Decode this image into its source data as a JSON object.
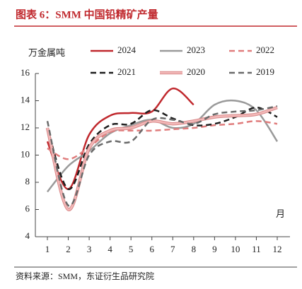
{
  "title": "图表 6：SMM 中国铅精矿产量",
  "source": "资料来源：SMM，东证衍生品研究院",
  "chart_data": {
    "type": "line",
    "y_label": "万金属吨",
    "x_label": "月",
    "categories": [
      1,
      2,
      3,
      4,
      5,
      6,
      7,
      8,
      9,
      10,
      11,
      12
    ],
    "ylim": [
      4,
      16
    ],
    "yticks": [
      4,
      6,
      8,
      10,
      12,
      14,
      16
    ],
    "series": [
      {
        "name": "2024",
        "color": "#c0282d",
        "style": "solid",
        "values": [
          11.0,
          7.5,
          11.5,
          12.9,
          13.1,
          13.2,
          14.9,
          13.7,
          null,
          null,
          null,
          null
        ]
      },
      {
        "name": "2023",
        "color": "#9a9a9a",
        "style": "solid",
        "values": [
          7.3,
          9.2,
          10.3,
          11.6,
          12.2,
          12.6,
          12.0,
          12.3,
          13.7,
          14.0,
          13.3,
          11.0
        ]
      },
      {
        "name": "2022",
        "color": "#e07c7c",
        "style": "dashed",
        "values": [
          10.5,
          9.7,
          10.6,
          11.7,
          11.8,
          11.8,
          11.9,
          12.0,
          12.2,
          12.3,
          12.5,
          12.3
        ]
      },
      {
        "name": "2021",
        "color": "#1e1e1e",
        "style": "dashed",
        "values": [
          12.0,
          7.5,
          10.8,
          12.2,
          12.3,
          13.3,
          12.7,
          12.2,
          12.3,
          12.8,
          13.5,
          12.8
        ]
      },
      {
        "name": "2020",
        "color": "#f2b8b8",
        "style": "double",
        "values": [
          12.0,
          6.0,
          10.5,
          11.8,
          12.0,
          12.5,
          12.3,
          12.5,
          12.8,
          12.9,
          13.0,
          13.5
        ]
      },
      {
        "name": "2019",
        "color": "#6a6a6a",
        "style": "dashed",
        "values": [
          12.5,
          6.3,
          10.0,
          11.0,
          11.0,
          12.6,
          12.6,
          12.3,
          13.0,
          13.2,
          13.3,
          13.6
        ]
      }
    ]
  }
}
